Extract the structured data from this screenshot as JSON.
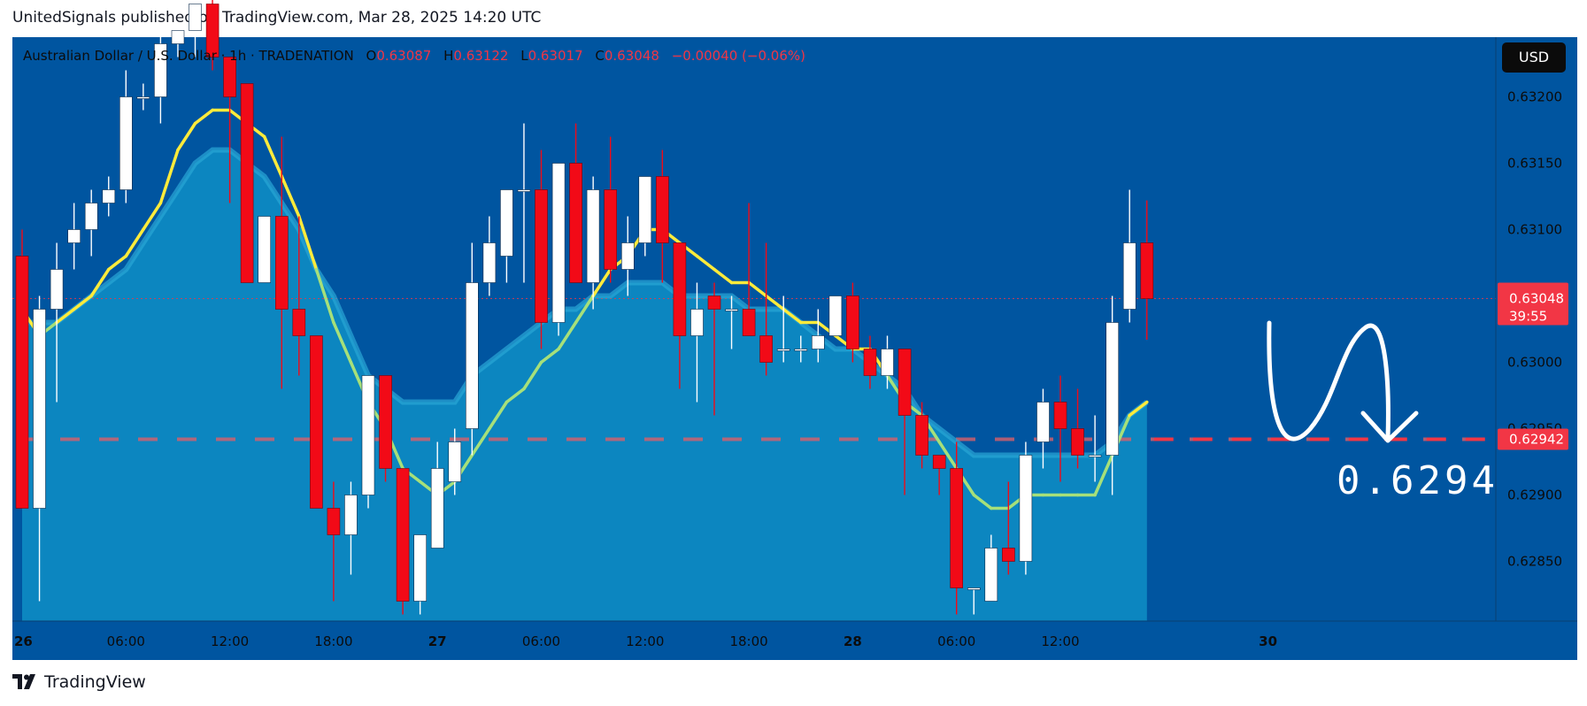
{
  "header": {
    "publisher_line": "UnitedSignals published on TradingView.com, Mar 28, 2025 14:20 UTC"
  },
  "legend": {
    "symbol": "Australian Dollar / U.S. Dollar · 1h · TRADENATION",
    "open_label": "O",
    "open": "0.63087",
    "high_label": "H",
    "high": "0.63122",
    "low_label": "L",
    "low": "0.63017",
    "close_label": "C",
    "close": "0.63048",
    "change": "−0.00040 (−0.06%)"
  },
  "currency_button": "USD",
  "price_tags": {
    "last_price": "0.63048",
    "countdown": "39:55",
    "target_line": "0.62942"
  },
  "annotation_label": "0.6294",
  "footer": {
    "logo_icon": "tradingview-logo-icon",
    "brand": "TradingView"
  },
  "colors": {
    "background": "#0055a0",
    "bull_candle": "#ffffff",
    "bear_candle": "#f20a17",
    "fast_ma": "#ffeb3b",
    "slow_ma_fill": "#0e8fc6",
    "target_line": "#f23645",
    "last_price_tag": "#f23645"
  },
  "chart_data": {
    "type": "candlestick",
    "timeframe": "1h",
    "y_ticks": [
      0.6285,
      0.629,
      0.6295,
      0.63,
      0.6305,
      0.631,
      0.6315,
      0.632
    ],
    "y_tick_labels": [
      "0.62850",
      "0.62900",
      "0.62950",
      "0.63000",
      "0.63050",
      "0.63100",
      "0.63150",
      "0.63200"
    ],
    "ylim": [
      0.62805,
      0.63245
    ],
    "x_ticks": [
      "26",
      "06:00",
      "12:00",
      "18:00",
      "27",
      "06:00",
      "12:00",
      "18:00",
      "28",
      "06:00",
      "12:00",
      "30"
    ],
    "x_tick_hours": [
      0,
      6,
      12,
      18,
      24,
      30,
      36,
      42,
      48,
      54,
      60,
      72
    ],
    "target_level": 0.62942,
    "last_price": 0.63048,
    "candles_start_hour": 0,
    "candles": [
      {
        "o": 0.6308,
        "h": 0.631,
        "l": 0.6289,
        "c": 0.6289
      },
      {
        "o": 0.6289,
        "h": 0.6305,
        "l": 0.6282,
        "c": 0.6304
      },
      {
        "o": 0.6304,
        "h": 0.6309,
        "l": 0.6297,
        "c": 0.6307
      },
      {
        "o": 0.6309,
        "h": 0.6312,
        "l": 0.6307,
        "c": 0.631
      },
      {
        "o": 0.631,
        "h": 0.6313,
        "l": 0.6308,
        "c": 0.6312
      },
      {
        "o": 0.6312,
        "h": 0.6314,
        "l": 0.6311,
        "c": 0.6313
      },
      {
        "o": 0.6313,
        "h": 0.6322,
        "l": 0.6312,
        "c": 0.632
      },
      {
        "o": 0.632,
        "h": 0.6321,
        "l": 0.6319,
        "c": 0.632
      },
      {
        "o": 0.632,
        "h": 0.6325,
        "l": 0.6318,
        "c": 0.6324
      },
      {
        "o": 0.6324,
        "h": 0.6325,
        "l": 0.6323,
        "c": 0.6325
      },
      {
        "o": 0.6325,
        "h": 0.6328,
        "l": 0.6323,
        "c": 0.6327
      },
      {
        "o": 0.6327,
        "h": 0.6328,
        "l": 0.6322,
        "c": 0.6323
      },
      {
        "o": 0.6323,
        "h": 0.6323,
        "l": 0.6312,
        "c": 0.632
      },
      {
        "o": 0.6321,
        "h": 0.6321,
        "l": 0.6306,
        "c": 0.6306
      },
      {
        "o": 0.6306,
        "h": 0.6311,
        "l": 0.6306,
        "c": 0.6311
      },
      {
        "o": 0.6311,
        "h": 0.6317,
        "l": 0.6298,
        "c": 0.6304
      },
      {
        "o": 0.6304,
        "h": 0.6311,
        "l": 0.6299,
        "c": 0.6302
      },
      {
        "o": 0.6302,
        "h": 0.6302,
        "l": 0.6289,
        "c": 0.6289
      },
      {
        "o": 0.6289,
        "h": 0.6291,
        "l": 0.6282,
        "c": 0.6287
      },
      {
        "o": 0.6287,
        "h": 0.6291,
        "l": 0.6284,
        "c": 0.629
      },
      {
        "o": 0.629,
        "h": 0.6299,
        "l": 0.6289,
        "c": 0.6299
      },
      {
        "o": 0.6299,
        "h": 0.6299,
        "l": 0.6291,
        "c": 0.6292
      },
      {
        "o": 0.6292,
        "h": 0.6292,
        "l": 0.6281,
        "c": 0.6282
      },
      {
        "o": 0.6282,
        "h": 0.6287,
        "l": 0.6281,
        "c": 0.6287
      },
      {
        "o": 0.6286,
        "h": 0.6294,
        "l": 0.6286,
        "c": 0.6292
      },
      {
        "o": 0.6291,
        "h": 0.6295,
        "l": 0.629,
        "c": 0.6294
      },
      {
        "o": 0.6295,
        "h": 0.6309,
        "l": 0.6293,
        "c": 0.6306
      },
      {
        "o": 0.6306,
        "h": 0.6311,
        "l": 0.6305,
        "c": 0.6309
      },
      {
        "o": 0.6308,
        "h": 0.6313,
        "l": 0.6306,
        "c": 0.6313
      },
      {
        "o": 0.6313,
        "h": 0.6318,
        "l": 0.6306,
        "c": 0.6313
      },
      {
        "o": 0.6313,
        "h": 0.6316,
        "l": 0.6301,
        "c": 0.6303
      },
      {
        "o": 0.6303,
        "h": 0.6315,
        "l": 0.6302,
        "c": 0.6315
      },
      {
        "o": 0.6315,
        "h": 0.6318,
        "l": 0.6306,
        "c": 0.6306
      },
      {
        "o": 0.6306,
        "h": 0.6314,
        "l": 0.6304,
        "c": 0.6313
      },
      {
        "o": 0.6313,
        "h": 0.6317,
        "l": 0.6306,
        "c": 0.6307
      },
      {
        "o": 0.6307,
        "h": 0.6311,
        "l": 0.6305,
        "c": 0.6309
      },
      {
        "o": 0.6309,
        "h": 0.6314,
        "l": 0.6308,
        "c": 0.6314
      },
      {
        "o": 0.6314,
        "h": 0.6316,
        "l": 0.6306,
        "c": 0.6309
      },
      {
        "o": 0.6309,
        "h": 0.6309,
        "l": 0.6298,
        "c": 0.6302
      },
      {
        "o": 0.6302,
        "h": 0.6306,
        "l": 0.6297,
        "c": 0.6304
      },
      {
        "o": 0.6305,
        "h": 0.6306,
        "l": 0.6296,
        "c": 0.6304
      },
      {
        "o": 0.6304,
        "h": 0.6305,
        "l": 0.6301,
        "c": 0.6304
      },
      {
        "o": 0.6304,
        "h": 0.6312,
        "l": 0.6302,
        "c": 0.6302
      },
      {
        "o": 0.6302,
        "h": 0.6309,
        "l": 0.6299,
        "c": 0.63
      },
      {
        "o": 0.6301,
        "h": 0.6305,
        "l": 0.63,
        "c": 0.6301
      },
      {
        "o": 0.6301,
        "h": 0.6302,
        "l": 0.63,
        "c": 0.6301
      },
      {
        "o": 0.6301,
        "h": 0.6304,
        "l": 0.63,
        "c": 0.6302
      },
      {
        "o": 0.6302,
        "h": 0.6305,
        "l": 0.6302,
        "c": 0.6305
      },
      {
        "o": 0.6305,
        "h": 0.6306,
        "l": 0.63,
        "c": 0.6301
      },
      {
        "o": 0.6301,
        "h": 0.6302,
        "l": 0.6298,
        "c": 0.6299
      },
      {
        "o": 0.6299,
        "h": 0.6302,
        "l": 0.6298,
        "c": 0.6301
      },
      {
        "o": 0.6301,
        "h": 0.6301,
        "l": 0.629,
        "c": 0.6296
      },
      {
        "o": 0.6296,
        "h": 0.6297,
        "l": 0.6292,
        "c": 0.6293
      },
      {
        "o": 0.6293,
        "h": 0.6293,
        "l": 0.629,
        "c": 0.6292
      },
      {
        "o": 0.6292,
        "h": 0.6294,
        "l": 0.6281,
        "c": 0.6283
      },
      {
        "o": 0.6283,
        "h": 0.6283,
        "l": 0.6281,
        "c": 0.6283
      },
      {
        "o": 0.6282,
        "h": 0.6287,
        "l": 0.6282,
        "c": 0.6286
      },
      {
        "o": 0.6286,
        "h": 0.6291,
        "l": 0.6284,
        "c": 0.6285
      },
      {
        "o": 0.6285,
        "h": 0.6294,
        "l": 0.6284,
        "c": 0.6293
      },
      {
        "o": 0.6294,
        "h": 0.6298,
        "l": 0.6292,
        "c": 0.6297
      },
      {
        "o": 0.6297,
        "h": 0.6299,
        "l": 0.6291,
        "c": 0.6295
      },
      {
        "o": 0.6295,
        "h": 0.6298,
        "l": 0.6292,
        "c": 0.6293
      },
      {
        "o": 0.6293,
        "h": 0.6296,
        "l": 0.6291,
        "c": 0.6293
      },
      {
        "o": 0.6293,
        "h": 0.6305,
        "l": 0.629,
        "c": 0.6303
      },
      {
        "o": 0.6304,
        "h": 0.6313,
        "l": 0.6303,
        "c": 0.6309
      },
      {
        "o": 0.6309,
        "h": 0.63122,
        "l": 0.63017,
        "c": 0.63048
      }
    ],
    "fast_ma": [
      0.6304,
      0.6302,
      0.6303,
      0.6304,
      0.6305,
      0.6307,
      0.6308,
      0.631,
      0.6312,
      0.6316,
      0.6318,
      0.6319,
      0.6319,
      0.6318,
      0.6317,
      0.6314,
      0.6311,
      0.6307,
      0.6303,
      0.63,
      0.6297,
      0.6295,
      0.6292,
      0.6291,
      0.629,
      0.6291,
      0.6293,
      0.6295,
      0.6297,
      0.6298,
      0.63,
      0.6301,
      0.6303,
      0.6305,
      0.6307,
      0.6308,
      0.631,
      0.631,
      0.6309,
      0.6308,
      0.6307,
      0.6306,
      0.6306,
      0.6305,
      0.6304,
      0.6303,
      0.6303,
      0.6302,
      0.6301,
      0.6301,
      0.6299,
      0.6297,
      0.6296,
      0.6294,
      0.6292,
      0.629,
      0.6289,
      0.6289,
      0.629,
      0.629,
      0.629,
      0.629,
      0.629,
      0.6293,
      0.6296,
      0.6297
    ],
    "slow_ma": [
      0.6303,
      0.6303,
      0.6303,
      0.6304,
      0.6305,
      0.6306,
      0.6307,
      0.6309,
      0.6311,
      0.6313,
      0.6315,
      0.6316,
      0.6316,
      0.6315,
      0.6314,
      0.6312,
      0.631,
      0.6307,
      0.6305,
      0.6302,
      0.6299,
      0.6298,
      0.6297,
      0.6297,
      0.6297,
      0.6297,
      0.6299,
      0.63,
      0.6301,
      0.6302,
      0.6303,
      0.6304,
      0.6304,
      0.6305,
      0.6305,
      0.6306,
      0.6306,
      0.6306,
      0.6305,
      0.6305,
      0.6305,
      0.6305,
      0.6304,
      0.6304,
      0.6304,
      0.6303,
      0.6302,
      0.6301,
      0.6301,
      0.63,
      0.6299,
      0.6298,
      0.6296,
      0.6295,
      0.6294,
      0.6293,
      0.6293,
      0.6293,
      0.6293,
      0.6293,
      0.6293,
      0.6293,
      0.6293,
      0.6294,
      0.6296,
      0.6297
    ]
  }
}
